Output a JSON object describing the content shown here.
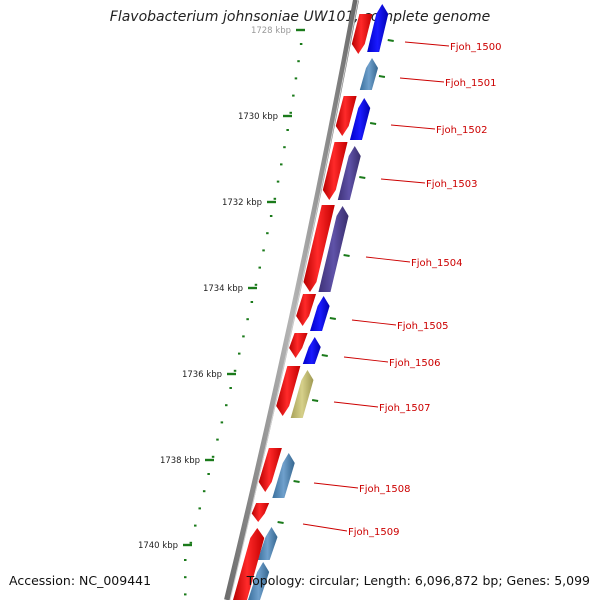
{
  "title": "Flavobacterium johnsoniae UW101, complete genome",
  "accession": "Accession: NC_009441",
  "summary": "Topology: circular; Length: 6,096,872 bp; Genes: 5,099",
  "colors": {
    "backbone": "#8a8a8a",
    "tick": "#1a7a1a",
    "label": "#cc0000",
    "strand1": "#ff0000",
    "blue": "#0000ff",
    "steel": "#4682b4",
    "purple": "#4b3d8f",
    "khaki": "#bdb76b"
  },
  "ruler": {
    "labels": [
      "1728 kbp",
      "1730 kbp",
      "1732 kbp",
      "1734 kbp",
      "1736 kbp",
      "1738 kbp",
      "1740 kbp"
    ]
  },
  "genes": [
    {
      "id": "Fjoh_1500",
      "cog": "blue"
    },
    {
      "id": "Fjoh_1501",
      "cog": "steel"
    },
    {
      "id": "Fjoh_1502",
      "cog": "blue"
    },
    {
      "id": "Fjoh_1503",
      "cog": "purple"
    },
    {
      "id": "Fjoh_1504",
      "cog": "purple"
    },
    {
      "id": "Fjoh_1505",
      "cog": "blue"
    },
    {
      "id": "Fjoh_1506",
      "cog": "blue"
    },
    {
      "id": "Fjoh_1507",
      "cog": "khaki"
    },
    {
      "id": "Fjoh_1508",
      "cog": "steel"
    },
    {
      "id": "Fjoh_1509",
      "cog": "steel"
    }
  ]
}
